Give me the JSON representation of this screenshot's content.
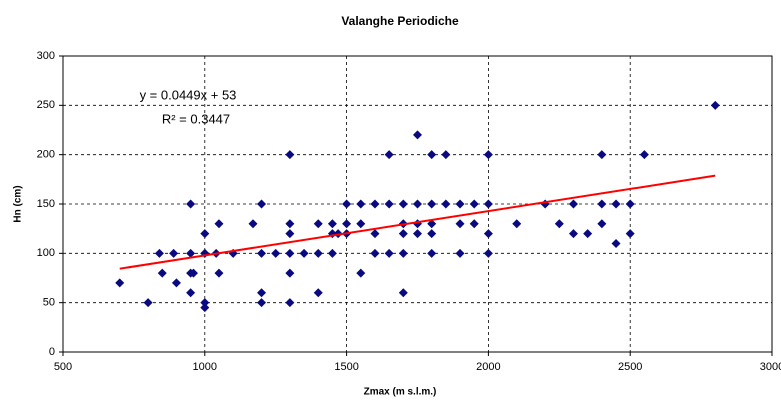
{
  "chart_data": {
    "type": "scatter",
    "title": "Valanghe Periodiche",
    "x_label": "Zmax (m s.l.m.)",
    "y_label": "Hn (cm)",
    "series": [
      {
        "name": "Hn",
        "color": "#0a0a80",
        "x": [
          700,
          800,
          840,
          850,
          890,
          900,
          950,
          950,
          950,
          950,
          960,
          1000,
          1000,
          1000,
          1000,
          1000,
          1040,
          1050,
          1050,
          1100,
          1170,
          1200,
          1200,
          1200,
          1200,
          1250,
          1300,
          1300,
          1300,
          1300,
          1300,
          1300,
          1350,
          1400,
          1400,
          1400,
          1450,
          1450,
          1450,
          1470,
          1500,
          1500,
          1500,
          1550,
          1550,
          1550,
          1600,
          1600,
          1600,
          1650,
          1650,
          1650,
          1700,
          1700,
          1700,
          1700,
          1700,
          1750,
          1750,
          1750,
          1750,
          1800,
          1800,
          1800,
          1800,
          1800,
          1850,
          1850,
          1900,
          1900,
          1900,
          1950,
          1950,
          2000,
          2000,
          2000,
          2000,
          2100,
          2200,
          2250,
          2300,
          2300,
          2350,
          2400,
          2400,
          2400,
          2450,
          2450,
          2500,
          2500,
          2550,
          2800
        ],
        "values": [
          70,
          50,
          100,
          80,
          100,
          70,
          150,
          100,
          80,
          60,
          80,
          120,
          100,
          50,
          45,
          100,
          100,
          130,
          80,
          100,
          130,
          150,
          100,
          60,
          50,
          100,
          200,
          130,
          120,
          100,
          80,
          50,
          100,
          130,
          100,
          60,
          130,
          120,
          100,
          120,
          150,
          130,
          120,
          150,
          130,
          80,
          150,
          120,
          100,
          200,
          150,
          100,
          150,
          130,
          120,
          100,
          60,
          220,
          150,
          130,
          120,
          200,
          150,
          130,
          120,
          100,
          200,
          150,
          150,
          130,
          100,
          150,
          130,
          200,
          150,
          120,
          100,
          130,
          150,
          130,
          150,
          120,
          120,
          200,
          150,
          130,
          150,
          110,
          150,
          120,
          200,
          250
        ]
      }
    ],
    "trendline": {
      "slope": 0.0449,
      "intercept": 53,
      "xrange": [
        700,
        2800
      ],
      "color": "#ff0000",
      "equation": "y = 0.0449x + 53",
      "r2_label": "R² = 0.3447"
    },
    "xlim": [
      500,
      3000
    ],
    "xticks": [
      500,
      1000,
      1500,
      2000,
      2500,
      3000
    ],
    "ylim": [
      0,
      300
    ],
    "yticks": [
      0,
      50,
      100,
      150,
      200,
      250,
      300
    ],
    "grid": true
  }
}
